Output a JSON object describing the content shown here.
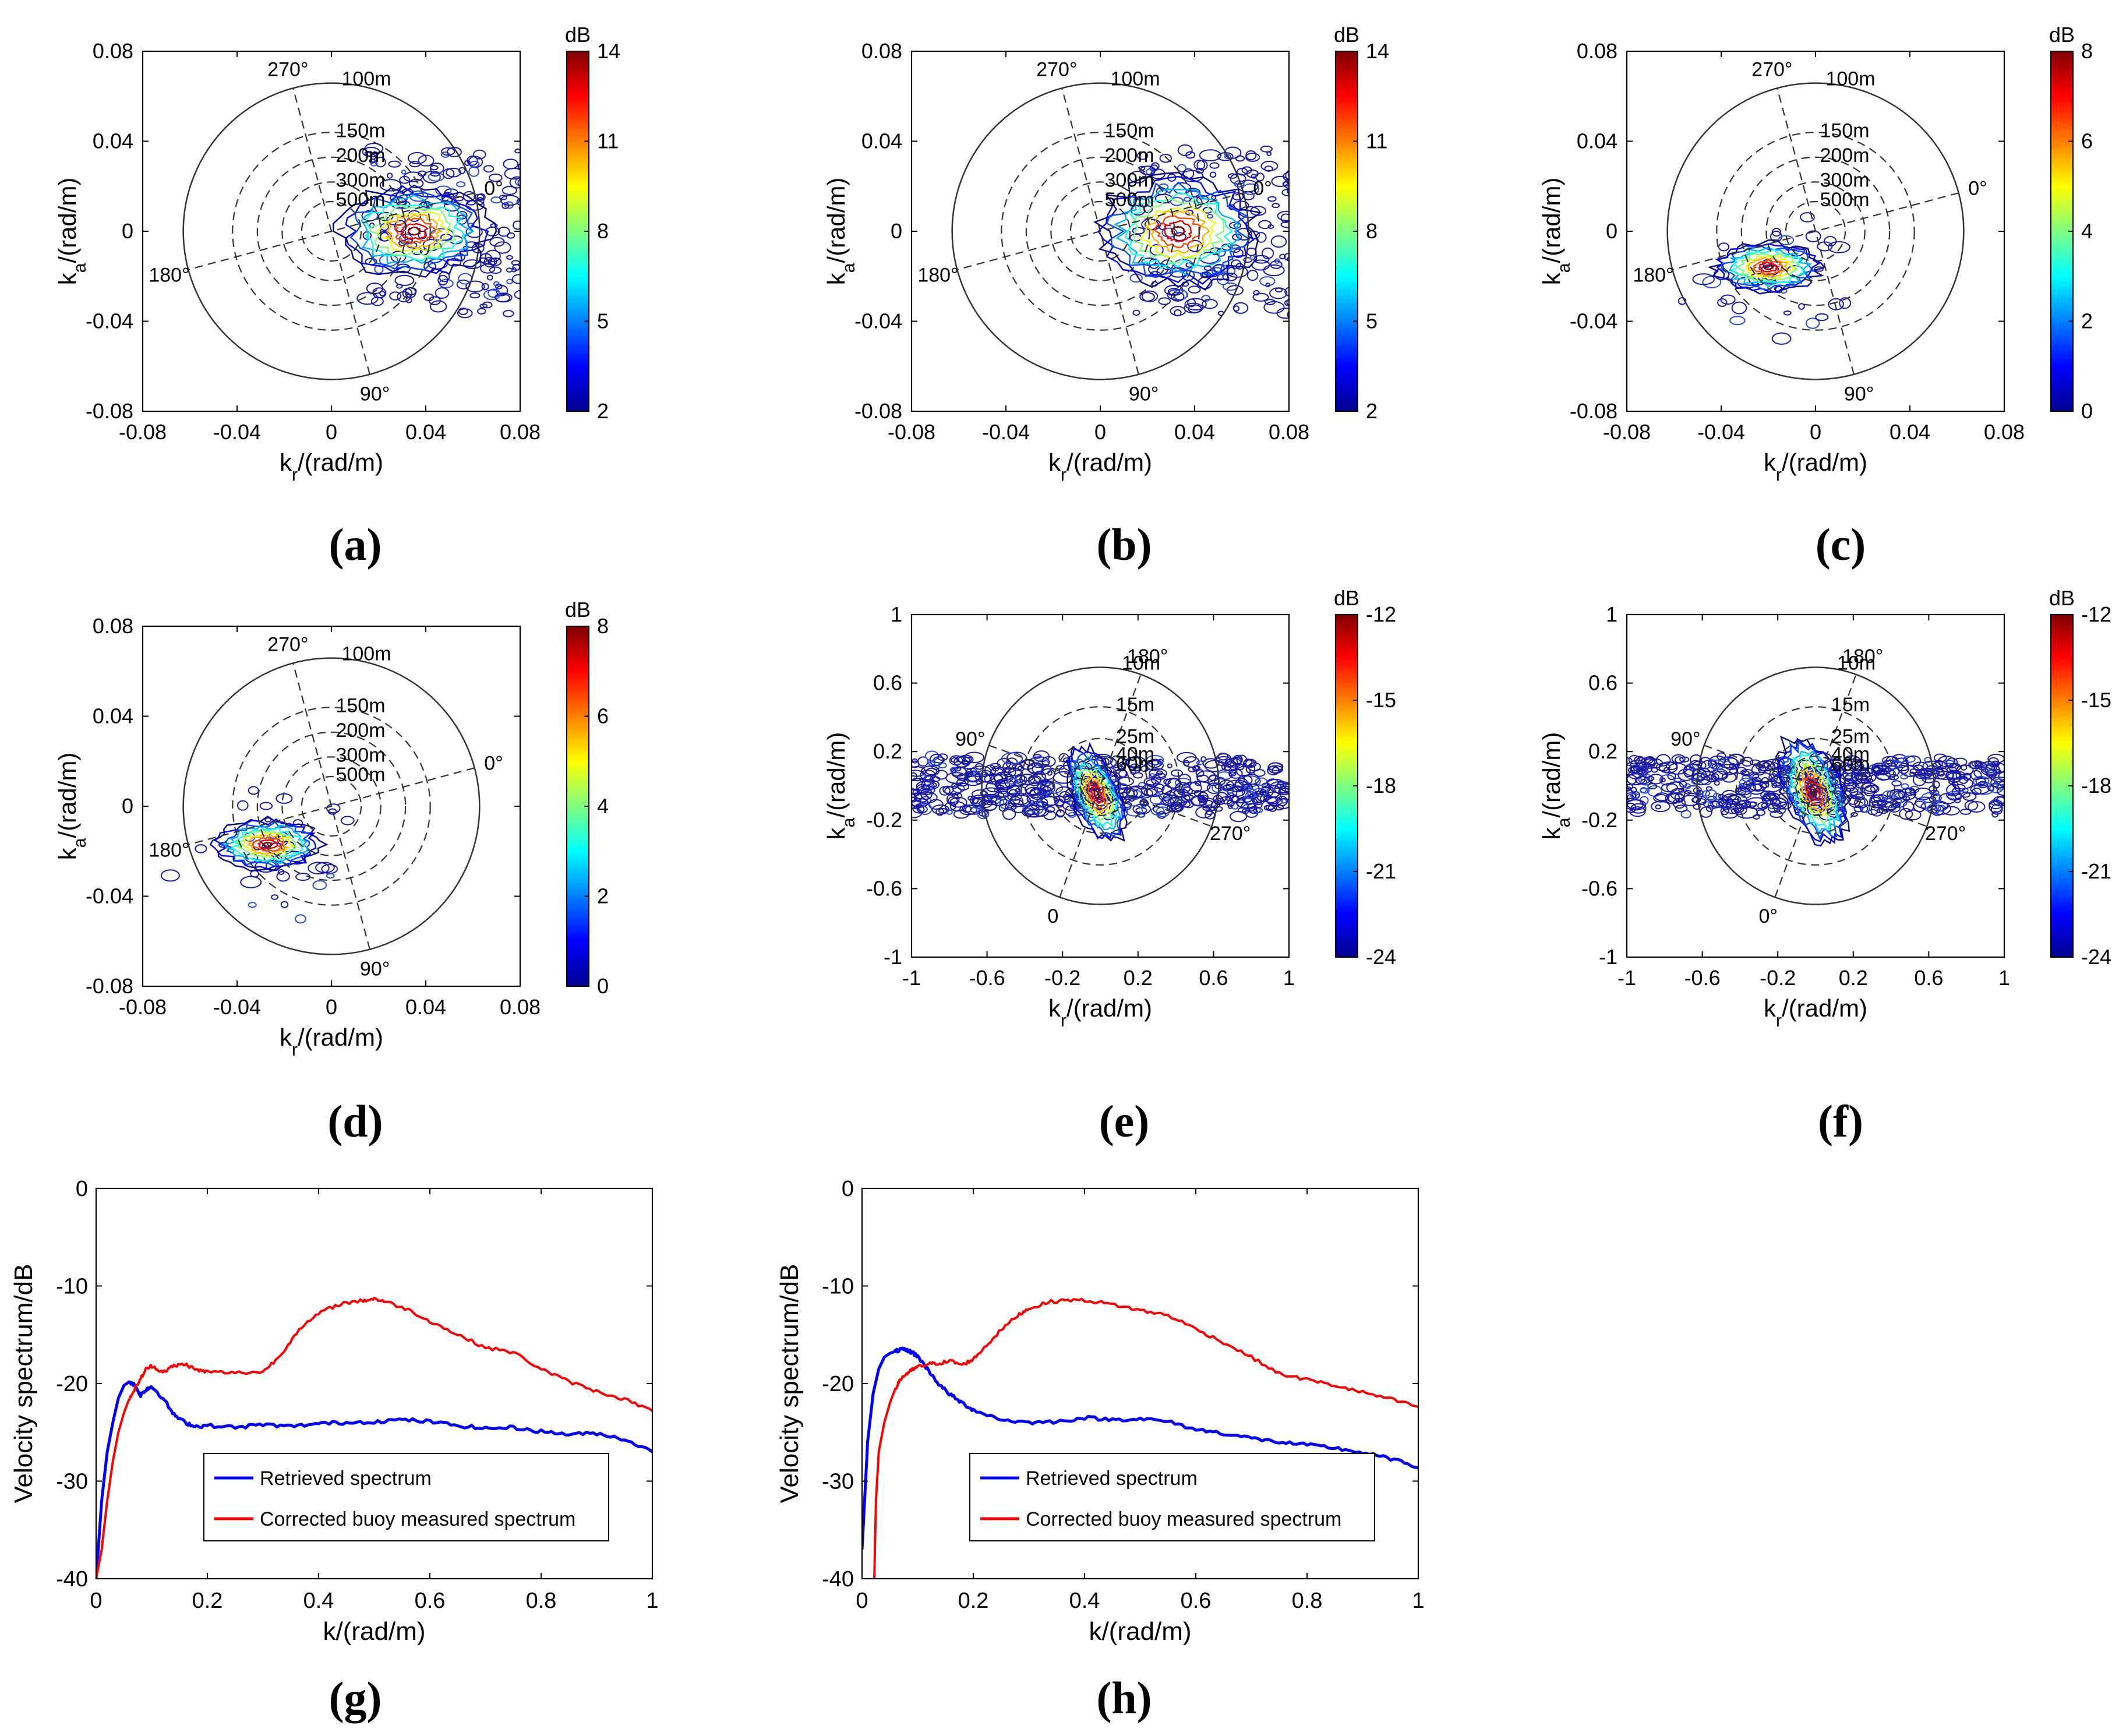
{
  "figure": {
    "panel_labels": [
      "(a)",
      "(b)",
      "(c)",
      "(d)",
      "(e)",
      "(f)",
      "(g)",
      "(h)"
    ]
  },
  "colors": {
    "jet": [
      "#00008f",
      "#0000ff",
      "#007fff",
      "#00ffff",
      "#7fff7f",
      "#ffff00",
      "#ff7f00",
      "#ff0000",
      "#7f0000"
    ],
    "ring": "#333333",
    "contour_low": "#1a1aa6",
    "retrieved_line": "#0000ff",
    "buoy_line": "#ff0000"
  },
  "chart_data": [
    {
      "id": "a",
      "type": "heatmap",
      "subtype": "polar-wave-spectrum",
      "title": "",
      "xlabel": "k_r/(rad/m)",
      "ylabel": "k_a/(rad/m)",
      "xlim": [
        -0.08,
        0.08
      ],
      "ylim": [
        -0.08,
        0.08
      ],
      "xticks": [
        "-0.08",
        "-0.04",
        "0",
        "0.04",
        "0.08"
      ],
      "yticks": [
        "-0.08",
        "-0.04",
        "0",
        "0.04",
        "0.08"
      ],
      "colorbar": {
        "label": "dB",
        "min": 2,
        "max": 14,
        "ticks": [
          "2",
          "5",
          "8",
          "11",
          "14"
        ]
      },
      "rings": [
        {
          "k": 0.0628,
          "label": "100m",
          "solid": true
        },
        {
          "k": 0.0419,
          "label": "150m"
        },
        {
          "k": 0.0314,
          "label": "200m"
        },
        {
          "k": 0.0209,
          "label": "300m"
        },
        {
          "k": 0.0126,
          "label": "500m"
        }
      ],
      "rotation_deg": 75,
      "directions": [
        {
          "angle": 0,
          "label": "0°"
        },
        {
          "angle": 90,
          "label": "90°"
        },
        {
          "angle": 180,
          "label": "180°"
        },
        {
          "angle": 270,
          "label": "270°"
        }
      ],
      "peak": {
        "kr": 0.035,
        "ka": 0.0,
        "level": 14
      },
      "spread": [
        0.014,
        0.009
      ],
      "noise": 0.7,
      "extent": [
        0.015,
        0.08
      ]
    },
    {
      "id": "b",
      "type": "heatmap",
      "subtype": "polar-wave-spectrum",
      "title": "",
      "xlabel": "k_r/(rad/m)",
      "ylabel": "k_a/(rad/m)",
      "xlim": [
        -0.08,
        0.08
      ],
      "ylim": [
        -0.08,
        0.08
      ],
      "xticks": [
        "-0.08",
        "-0.04",
        "0",
        "0.04",
        "0.08"
      ],
      "yticks": [
        "-0.08",
        "-0.04",
        "0",
        "0.04",
        "0.08"
      ],
      "colorbar": {
        "label": "dB",
        "min": 2,
        "max": 14,
        "ticks": [
          "2",
          "5",
          "8",
          "11",
          "14"
        ]
      },
      "rings": [
        {
          "k": 0.0628,
          "label": "100m",
          "solid": true
        },
        {
          "k": 0.0419,
          "label": "150m"
        },
        {
          "k": 0.0314,
          "label": "200m"
        },
        {
          "k": 0.0209,
          "label": "300m"
        },
        {
          "k": 0.0126,
          "label": "500m"
        }
      ],
      "rotation_deg": 75,
      "directions": [
        {
          "angle": 0,
          "label": "0°"
        },
        {
          "angle": 90,
          "label": "90°"
        },
        {
          "angle": 180,
          "label": "180°"
        },
        {
          "angle": 270,
          "label": "270°"
        }
      ],
      "peak": {
        "kr": 0.033,
        "ka": 0.0,
        "level": 14
      },
      "spread": [
        0.015,
        0.011
      ],
      "noise": 0.7,
      "extent": [
        0.015,
        0.08
      ]
    },
    {
      "id": "c",
      "type": "heatmap",
      "subtype": "polar-wave-spectrum",
      "title": "",
      "xlabel": "k_r/(rad/m)",
      "ylabel": "k_a/(rad/m)",
      "xlim": [
        -0.08,
        0.08
      ],
      "ylim": [
        -0.08,
        0.08
      ],
      "xticks": [
        "-0.08",
        "-0.04",
        "0",
        "0.04",
        "0.08"
      ],
      "yticks": [
        "-0.08",
        "-0.04",
        "0",
        "0.04",
        "0.08"
      ],
      "colorbar": {
        "label": "dB",
        "min": 0,
        "max": 8,
        "ticks": [
          "0",
          "2",
          "4",
          "6",
          "8"
        ]
      },
      "rings": [
        {
          "k": 0.0628,
          "label": "100m",
          "solid": true
        },
        {
          "k": 0.0419,
          "label": "150m"
        },
        {
          "k": 0.0314,
          "label": "200m"
        },
        {
          "k": 0.0209,
          "label": "300m"
        },
        {
          "k": 0.0126,
          "label": "500m"
        }
      ],
      "rotation_deg": 75,
      "directions": [
        {
          "angle": 0,
          "label": "0°"
        },
        {
          "angle": 90,
          "label": "90°"
        },
        {
          "angle": 180,
          "label": "180°"
        },
        {
          "angle": 270,
          "label": "270°"
        }
      ],
      "peak": {
        "kr": -0.02,
        "ka": -0.016,
        "level": 8
      },
      "spread": [
        0.01,
        0.005
      ],
      "noise": 0.5,
      "extent": [
        -0.05,
        0.0
      ]
    },
    {
      "id": "d",
      "type": "heatmap",
      "subtype": "polar-wave-spectrum",
      "title": "",
      "xlabel": "k_r/(rad/m)",
      "ylabel": "k_a/(rad/m)",
      "xlim": [
        -0.08,
        0.08
      ],
      "ylim": [
        -0.08,
        0.08
      ],
      "xticks": [
        "-0.08",
        "-0.04",
        "0",
        "0.04",
        "0.08"
      ],
      "yticks": [
        "-0.08",
        "-0.04",
        "0",
        "0.04",
        "0.08"
      ],
      "colorbar": {
        "label": "dB",
        "min": 0,
        "max": 8,
        "ticks": [
          "0",
          "2",
          "4",
          "6",
          "8"
        ]
      },
      "rings": [
        {
          "k": 0.0628,
          "label": "100m",
          "solid": true
        },
        {
          "k": 0.0419,
          "label": "150m"
        },
        {
          "k": 0.0314,
          "label": "200m"
        },
        {
          "k": 0.0209,
          "label": "300m"
        },
        {
          "k": 0.0126,
          "label": "500m"
        }
      ],
      "rotation_deg": 75,
      "directions": [
        {
          "angle": 0,
          "label": "0°"
        },
        {
          "angle": 90,
          "label": "90°"
        },
        {
          "angle": 180,
          "label": "180°"
        },
        {
          "angle": 270,
          "label": "270°"
        }
      ],
      "peak": {
        "kr": -0.027,
        "ka": -0.017,
        "level": 8
      },
      "spread": [
        0.01,
        0.005
      ],
      "noise": 0.5,
      "extent": [
        -0.05,
        0.0
      ]
    },
    {
      "id": "e",
      "type": "heatmap",
      "subtype": "polar-wave-spectrum",
      "title": "",
      "xlabel": "k_r/(rad/m)",
      "ylabel": "k_a/(rad/m)",
      "xlim": [
        -1,
        1
      ],
      "ylim": [
        -1,
        1
      ],
      "xticks": [
        "-1",
        "-0.6",
        "-0.2",
        "0.2",
        "0.6",
        "1"
      ],
      "yticks": [
        "-1",
        "-0.6",
        "-0.2",
        "0.2",
        "0.6",
        "1"
      ],
      "colorbar": {
        "label": "dB",
        "min": -24,
        "max": -12,
        "ticks": [
          "-24",
          "-21",
          "-18",
          "-15",
          "-12"
        ]
      },
      "rings": [
        {
          "k": 0.628,
          "label": "10m",
          "solid": true
        },
        {
          "k": 0.419,
          "label": "15m"
        },
        {
          "k": 0.251,
          "label": "25m"
        },
        {
          "k": 0.157,
          "label": "40m"
        },
        {
          "k": 0.105,
          "label": "60m"
        }
      ],
      "rotation_deg": -160,
      "directions": [
        {
          "angle": 0,
          "label": "0"
        },
        {
          "angle": 90,
          "label": "90°"
        },
        {
          "angle": 180,
          "label": "180°"
        },
        {
          "angle": 270,
          "label": "270°"
        }
      ],
      "peak": {
        "kr": -0.02,
        "ka": -0.05,
        "level": -12
      },
      "spread": [
        0.06,
        0.13
      ],
      "noise": 0.6,
      "extent": [
        -1,
        1
      ]
    },
    {
      "id": "f",
      "type": "heatmap",
      "subtype": "polar-wave-spectrum",
      "title": "",
      "xlabel": "k_r/(rad/m)",
      "ylabel": "k_a/(rad/m)",
      "xlim": [
        -1,
        1
      ],
      "ylim": [
        -1,
        1
      ],
      "xticks": [
        "-1",
        "-0.6",
        "-0.2",
        "0.2",
        "0.6",
        "1"
      ],
      "yticks": [
        "-1",
        "-0.6",
        "-0.2",
        "0.2",
        "0.6",
        "1"
      ],
      "colorbar": {
        "label": "dB",
        "min": -24,
        "max": -12,
        "ticks": [
          "-24",
          "-21",
          "-18",
          "-15",
          "-12"
        ]
      },
      "rings": [
        {
          "k": 0.628,
          "label": "10m",
          "solid": true
        },
        {
          "k": 0.419,
          "label": "15m"
        },
        {
          "k": 0.251,
          "label": "25m"
        },
        {
          "k": 0.157,
          "label": "40m"
        },
        {
          "k": 0.105,
          "label": "60m"
        }
      ],
      "rotation_deg": -160,
      "directions": [
        {
          "angle": 0,
          "label": "0°"
        },
        {
          "angle": 90,
          "label": "90°"
        },
        {
          "angle": 180,
          "label": "180°"
        },
        {
          "angle": 270,
          "label": "270°"
        }
      ],
      "peak": {
        "kr": -0.01,
        "ka": -0.03,
        "level": -12
      },
      "spread": [
        0.07,
        0.15
      ],
      "noise": 0.6,
      "extent": [
        -1,
        1
      ]
    },
    {
      "id": "g",
      "type": "line",
      "title": "",
      "xlabel": "k/(rad/m)",
      "ylabel": "Velocity spectrum/dB",
      "xlim": [
        0,
        1
      ],
      "ylim": [
        -40,
        0
      ],
      "xticks": [
        "0",
        "0.2",
        "0.4",
        "0.6",
        "0.8",
        "1"
      ],
      "yticks": [
        "-40",
        "-30",
        "-20",
        "-10",
        "0"
      ],
      "legend": "lower-right",
      "series": [
        {
          "name": "Retrieved spectrum",
          "color": "#0000ff",
          "x": [
            0.0,
            0.01,
            0.02,
            0.03,
            0.04,
            0.05,
            0.06,
            0.07,
            0.08,
            0.09,
            0.1,
            0.12,
            0.14,
            0.16,
            0.18,
            0.2,
            0.25,
            0.3,
            0.35,
            0.4,
            0.45,
            0.5,
            0.55,
            0.6,
            0.65,
            0.7,
            0.75,
            0.8,
            0.85,
            0.9,
            0.95,
            1.0
          ],
          "y": [
            -40,
            -32,
            -27,
            -24,
            -21.5,
            -20.2,
            -19.8,
            -20.2,
            -21.2,
            -20.6,
            -20.3,
            -21.5,
            -23.2,
            -24.0,
            -24.4,
            -24.3,
            -24.5,
            -24.2,
            -24.4,
            -24.1,
            -24.0,
            -23.9,
            -23.7,
            -23.9,
            -24.3,
            -24.6,
            -24.5,
            -24.9,
            -25.2,
            -25.1,
            -25.7,
            -27.0
          ]
        },
        {
          "name": "Corrected  buoy measured spectrum",
          "color": "#ff0000",
          "x": [
            0.0,
            0.01,
            0.02,
            0.03,
            0.04,
            0.05,
            0.06,
            0.07,
            0.08,
            0.09,
            0.1,
            0.12,
            0.14,
            0.16,
            0.18,
            0.2,
            0.25,
            0.3,
            0.33,
            0.36,
            0.4,
            0.44,
            0.48,
            0.5,
            0.52,
            0.56,
            0.6,
            0.65,
            0.7,
            0.75,
            0.8,
            0.85,
            0.9,
            0.95,
            1.0
          ],
          "y": [
            -40,
            -37,
            -32,
            -28,
            -25,
            -23,
            -21.5,
            -20.5,
            -19.5,
            -18.5,
            -18.2,
            -18.8,
            -18.2,
            -18.0,
            -18.6,
            -18.8,
            -18.9,
            -18.8,
            -17.2,
            -14.8,
            -12.8,
            -11.8,
            -11.5,
            -11.3,
            -11.6,
            -12.4,
            -13.6,
            -15.0,
            -16.3,
            -16.8,
            -18.5,
            -19.8,
            -20.8,
            -21.6,
            -22.8
          ]
        }
      ]
    },
    {
      "id": "h",
      "type": "line",
      "title": "",
      "xlabel": "k/(rad/m)",
      "ylabel": "Velocity spectrum/dB",
      "xlim": [
        0,
        1
      ],
      "ylim": [
        -40,
        0
      ],
      "xticks": [
        "0",
        "0.2",
        "0.4",
        "0.6",
        "0.8",
        "1"
      ],
      "yticks": [
        "-40",
        "-30",
        "-20",
        "-10",
        "0"
      ],
      "legend": "lower-right",
      "series": [
        {
          "name": "Retrieved spectrum",
          "color": "#0000ff",
          "x": [
            0.0,
            0.01,
            0.02,
            0.03,
            0.04,
            0.05,
            0.06,
            0.07,
            0.08,
            0.09,
            0.1,
            0.12,
            0.14,
            0.16,
            0.18,
            0.2,
            0.25,
            0.3,
            0.35,
            0.4,
            0.45,
            0.5,
            0.55,
            0.6,
            0.65,
            0.7,
            0.75,
            0.8,
            0.85,
            0.9,
            0.95,
            1.0
          ],
          "y": [
            -37,
            -26,
            -21,
            -18.5,
            -17.3,
            -16.9,
            -16.7,
            -16.5,
            -16.6,
            -16.8,
            -17.2,
            -18.7,
            -20.2,
            -21.2,
            -22.0,
            -22.7,
            -23.7,
            -24.0,
            -23.9,
            -23.5,
            -23.7,
            -23.6,
            -23.9,
            -24.7,
            -25.1,
            -25.6,
            -26.0,
            -26.3,
            -26.6,
            -27.1,
            -27.7,
            -28.6
          ]
        },
        {
          "name": "Corrected  buoy measured spectrum",
          "color": "#ff0000",
          "x": [
            0.022,
            0.025,
            0.03,
            0.04,
            0.05,
            0.06,
            0.07,
            0.08,
            0.09,
            0.1,
            0.12,
            0.14,
            0.16,
            0.18,
            0.2,
            0.22,
            0.25,
            0.28,
            0.3,
            0.34,
            0.38,
            0.42,
            0.46,
            0.5,
            0.55,
            0.6,
            0.65,
            0.7,
            0.75,
            0.8,
            0.85,
            0.9,
            0.95,
            1.0
          ],
          "y": [
            -40,
            -32,
            -27,
            -24,
            -22,
            -20.5,
            -19.5,
            -19.0,
            -18.6,
            -18.3,
            -18.0,
            -17.9,
            -17.7,
            -18.1,
            -17.5,
            -16.3,
            -14.5,
            -13.0,
            -12.3,
            -11.6,
            -11.4,
            -11.6,
            -12.0,
            -12.5,
            -13.0,
            -14.4,
            -15.8,
            -17.3,
            -19.0,
            -19.6,
            -20.2,
            -20.9,
            -21.6,
            -22.4
          ]
        }
      ]
    }
  ]
}
